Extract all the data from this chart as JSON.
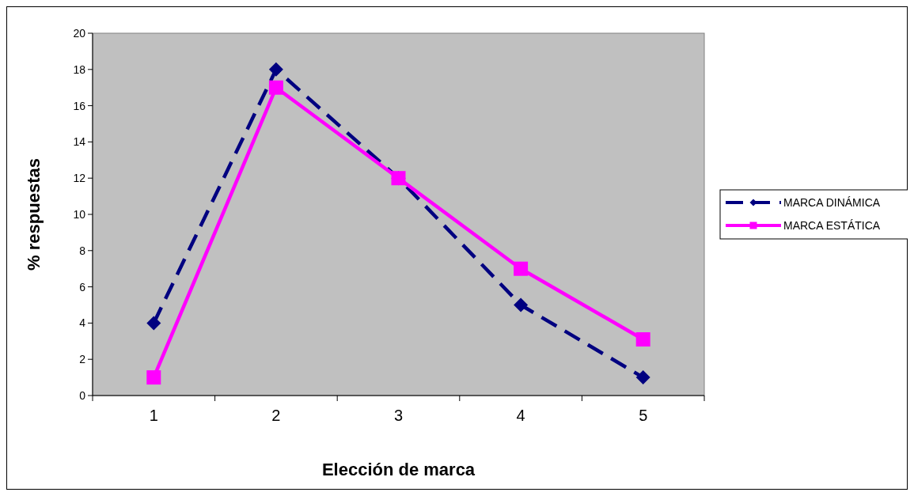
{
  "chart_data": {
    "type": "line",
    "xlabel": "Elección de marca",
    "ylabel": "% respuestas",
    "categories": [
      "1",
      "2",
      "3",
      "4",
      "5"
    ],
    "ylim": [
      0,
      20
    ],
    "yticks": [
      0,
      2,
      4,
      6,
      8,
      10,
      12,
      14,
      16,
      18,
      20
    ],
    "grid": false,
    "legend": "right",
    "series": [
      {
        "name": "MARCA DINÁMICA",
        "color": "#000080",
        "values": [
          4,
          18,
          12,
          5,
          1
        ],
        "marker": "diamond",
        "line_style": "dashed"
      },
      {
        "name": "MARCA ESTÁTICA",
        "color": "#ff00ff",
        "values": [
          1,
          17,
          12,
          7,
          3.1
        ],
        "marker": "square",
        "line_style": "solid"
      }
    ]
  }
}
